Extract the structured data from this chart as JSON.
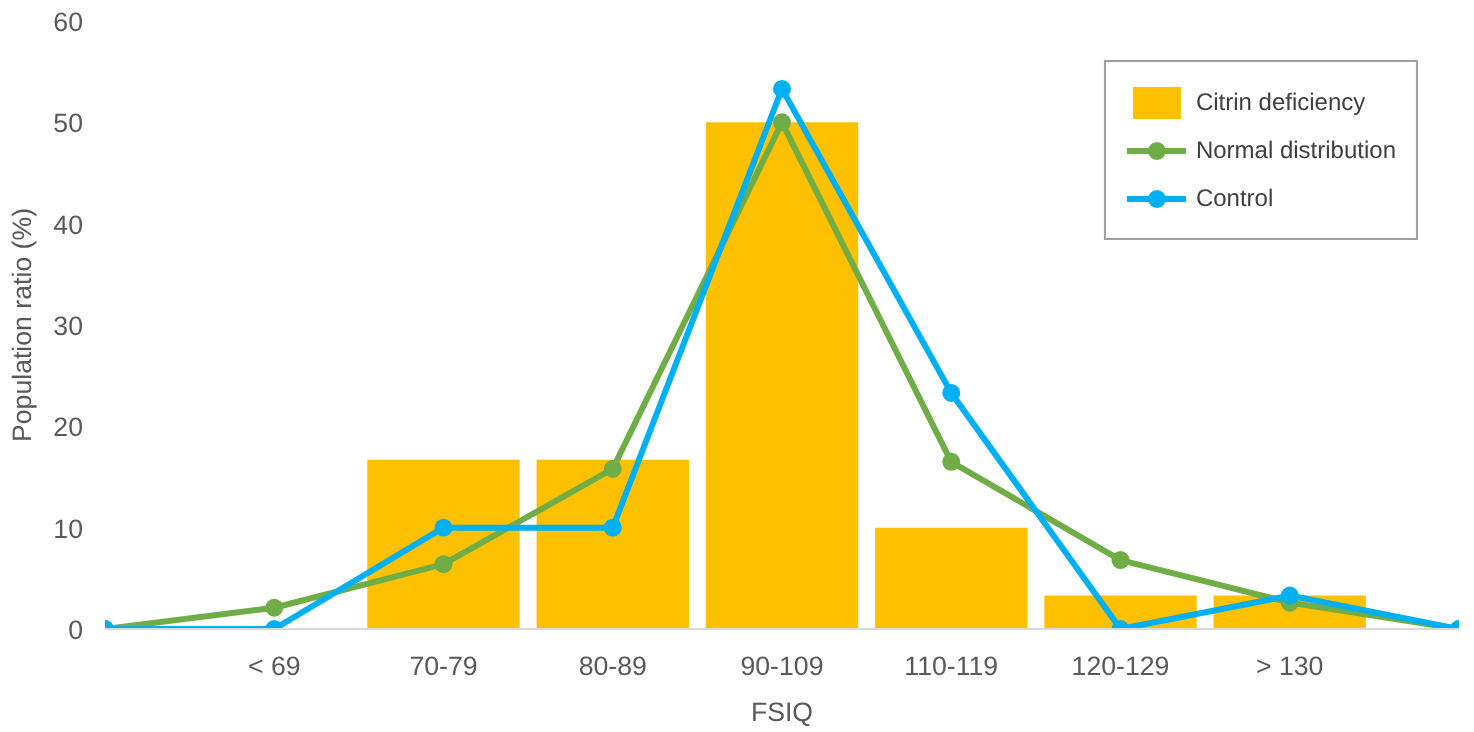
{
  "chart_data": {
    "type": "bar",
    "xlabel": "FSIQ",
    "ylabel": "Population ratio (%)",
    "categories": [
      null,
      "< 69",
      "70-79",
      "80-89",
      "90-109",
      "110-119",
      "120-129",
      "> 130",
      null
    ],
    "series": [
      {
        "name": "Citrin deficiency",
        "color": "#ffc000",
        "values": [
          null,
          null,
          16.7,
          16.7,
          50,
          10,
          3.3,
          3.3,
          null
        ]
      },
      {
        "name": "Normal distribution",
        "type": "line",
        "color": "#70ad47",
        "values": [
          0,
          2.1,
          6.4,
          15.8,
          50,
          16.5,
          6.8,
          2.6,
          0
        ]
      },
      {
        "name": "Control",
        "type": "line",
        "color": "#00b0f0",
        "values": [
          0,
          0,
          10,
          10,
          53.3,
          23.3,
          0,
          3.3,
          0
        ]
      }
    ],
    "ylim": [
      0,
      60
    ],
    "yticks": [
      0,
      10,
      20,
      30,
      40,
      50,
      60
    ],
    "grid": false,
    "legend": "top right",
    "marker": "circle",
    "line_style": "solid"
  }
}
